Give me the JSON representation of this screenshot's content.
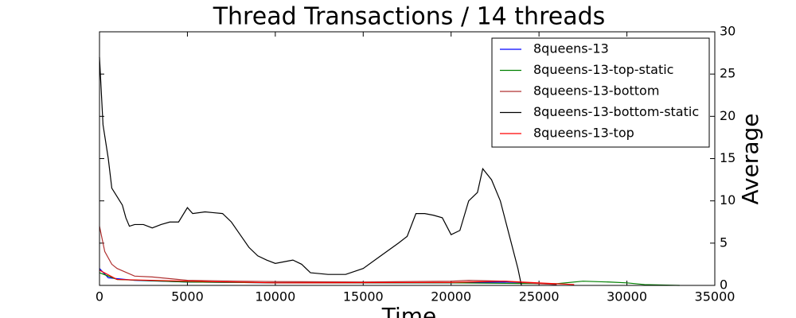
{
  "chart_data": {
    "type": "line",
    "title": "Thread Transactions / 14 threads",
    "x_label": "Time",
    "y_label": "Average",
    "xlim": [
      0,
      35000
    ],
    "xticks": [
      0,
      5000,
      10000,
      15000,
      20000,
      25000,
      30000,
      35000
    ],
    "ylim": [
      0,
      30
    ],
    "yticks": [
      0,
      5,
      10,
      15,
      20,
      25,
      30
    ],
    "y_axis_side": "right",
    "legend": "upper right",
    "series": [
      {
        "name": "8queens-13",
        "color": "#0000ff",
        "x": [
          0,
          500,
          2000,
          5000,
          10000,
          20000,
          23000,
          24500,
          26000
        ],
        "values": [
          2,
          0.9,
          0.6,
          0.4,
          0.3,
          0.3,
          0.4,
          0.3,
          0.1
        ]
      },
      {
        "name": "8queens-13-top-static",
        "color": "#008000",
        "x": [
          0,
          1000,
          5000,
          10000,
          20000,
          26000,
          27500,
          29000,
          30000,
          31000,
          33000
        ],
        "values": [
          1.5,
          0.7,
          0.4,
          0.3,
          0.3,
          0.2,
          0.5,
          0.4,
          0.3,
          0.1,
          0
        ]
      },
      {
        "name": "8queens-13-bottom",
        "color": "#b03030",
        "x": [
          0,
          300,
          700,
          1000,
          2000,
          3000,
          5000,
          8000,
          10000,
          15000,
          20000,
          21000,
          23000,
          25000,
          26000
        ],
        "values": [
          7,
          4,
          2.5,
          2,
          1.1,
          1,
          0.6,
          0.5,
          0.45,
          0.4,
          0.5,
          0.6,
          0.5,
          0.2,
          0.1
        ]
      },
      {
        "name": "8queens-13-bottom-static",
        "color": "#000000",
        "x": [
          0,
          200,
          500,
          700,
          1000,
          1300,
          1500,
          1700,
          2000,
          2500,
          3000,
          3500,
          4000,
          4500,
          5000,
          5300,
          6000,
          6500,
          7000,
          7500,
          8000,
          8500,
          9000,
          9500,
          10000,
          10500,
          11000,
          11500,
          12000,
          13000,
          14000,
          15000,
          16000,
          17000,
          17500,
          18000,
          18500,
          19000,
          19500,
          20000,
          20500,
          21000,
          21500,
          21800,
          22300,
          22800,
          23300,
          23800,
          24000
        ],
        "values": [
          27,
          19,
          15,
          11.5,
          10.5,
          9.5,
          8,
          7,
          7.2,
          7.2,
          6.8,
          7.2,
          7.5,
          7.5,
          9.2,
          8.5,
          8.7,
          8.6,
          8.5,
          7.5,
          6,
          4.5,
          3.5,
          3,
          2.6,
          2.8,
          3,
          2.5,
          1.5,
          1.3,
          1.3,
          2,
          3.5,
          5,
          5.8,
          8.5,
          8.5,
          8.3,
          8,
          6,
          6.5,
          10,
          11,
          13.8,
          12.5,
          10,
          6,
          2,
          0
        ]
      },
      {
        "name": "8queens-13-top",
        "color": "#ff0000",
        "x": [
          0,
          1000,
          5000,
          10000,
          20000,
          23000,
          25000,
          27000
        ],
        "values": [
          1.8,
          0.7,
          0.5,
          0.3,
          0.35,
          0.5,
          0.3,
          0.1
        ]
      }
    ]
  }
}
